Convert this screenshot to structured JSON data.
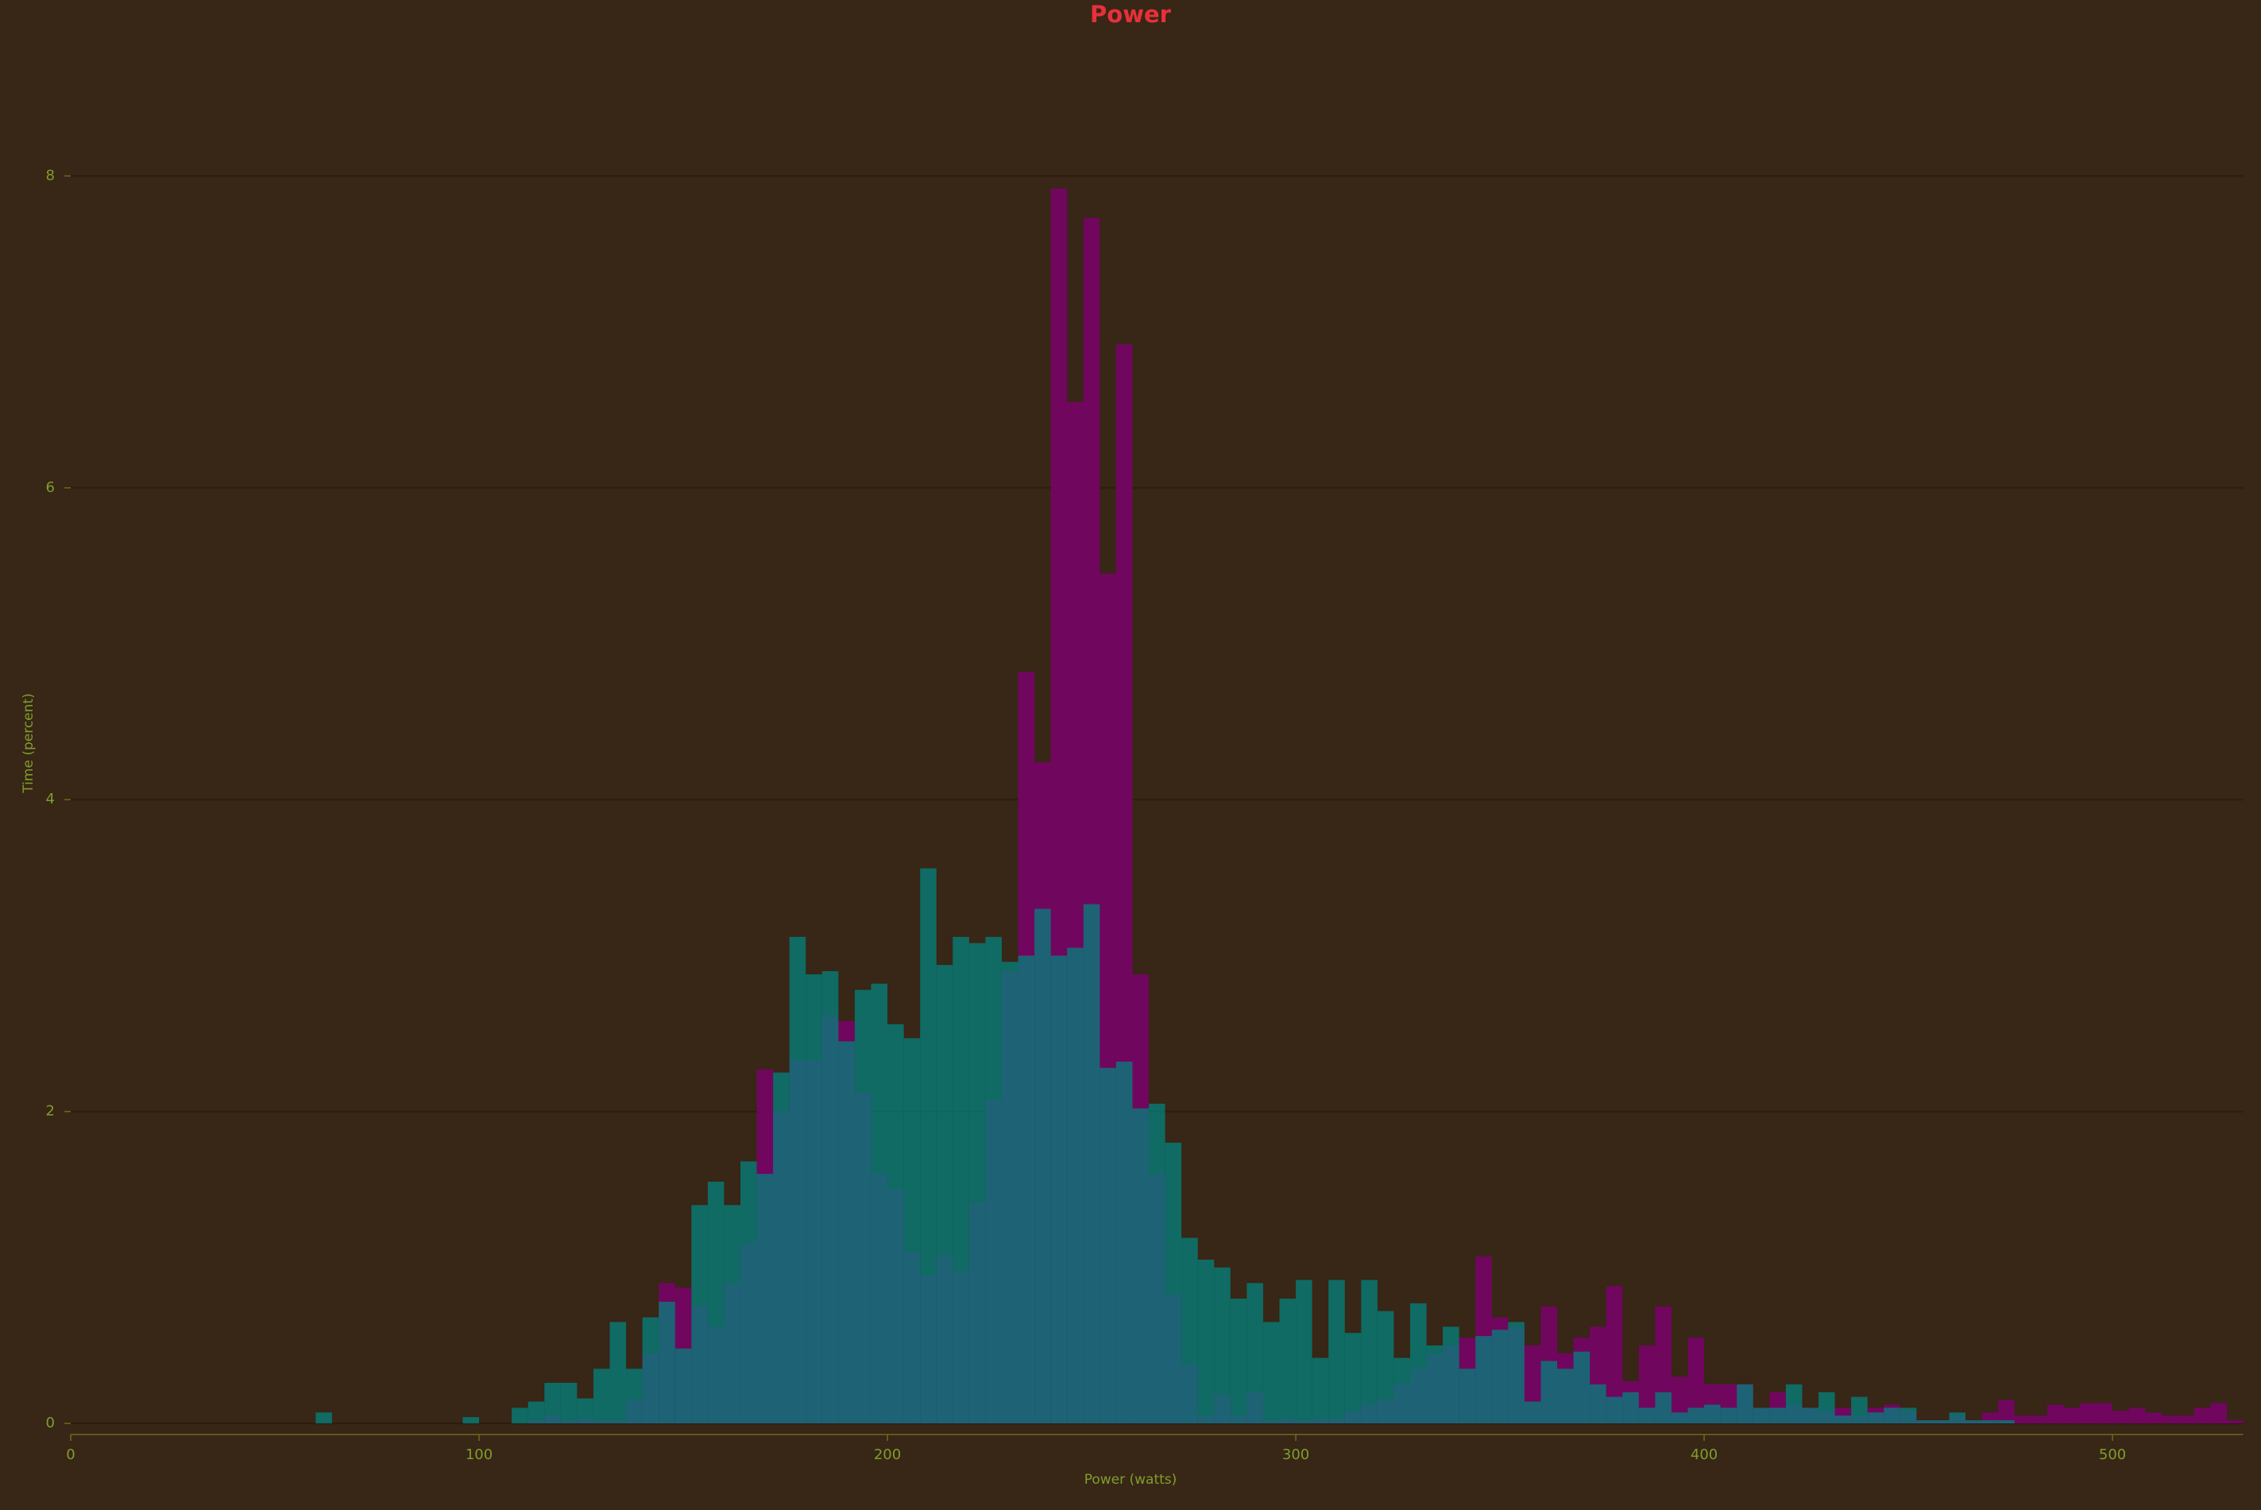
{
  "chart_data": {
    "type": "histogram",
    "title": "Power",
    "x_label": "Power (watts)",
    "y_label": "Time (percent)",
    "bins": [
      0,
      4,
      8,
      12,
      16,
      20,
      24,
      28,
      32,
      36,
      40,
      44,
      48,
      52,
      56,
      60,
      64,
      68,
      72,
      76,
      80,
      84,
      88,
      92,
      96,
      100,
      104,
      108,
      112,
      116,
      120,
      124,
      128,
      132,
      136,
      140,
      144,
      148,
      152,
      156,
      160,
      164,
      168,
      172,
      176,
      180,
      184,
      188,
      192,
      196,
      200,
      204,
      208,
      212,
      216,
      220,
      224,
      228,
      232,
      236,
      240,
      244,
      248,
      252,
      256,
      260,
      264,
      268,
      272,
      276,
      280,
      284,
      288,
      292,
      296,
      300,
      304,
      308,
      312,
      316,
      320,
      324,
      328,
      332,
      336,
      340,
      344,
      348,
      352,
      356,
      360,
      364,
      368,
      372,
      376,
      380,
      384,
      388,
      392,
      396,
      400,
      404,
      408,
      412,
      416,
      420,
      424,
      428,
      432,
      436,
      440,
      444,
      448,
      452,
      456,
      460,
      464,
      468,
      472,
      476,
      480,
      484,
      488,
      492,
      496,
      500,
      504,
      508,
      512,
      516,
      520,
      524,
      528,
      532
    ],
    "series": [
      {
        "color": "#71065f",
        "values": [
          0,
          0,
          0,
          0,
          0,
          0,
          0,
          0,
          0,
          0,
          0,
          0,
          0,
          0,
          0,
          0,
          0,
          0,
          0,
          0,
          0,
          0,
          0,
          0,
          0,
          0,
          0,
          0,
          0.02,
          0.05,
          0.02,
          0.03,
          0.02,
          0.02,
          0.15,
          0.45,
          0.9,
          0.87,
          0.75,
          0.62,
          0.9,
          1.15,
          2.27,
          2.0,
          2.33,
          2.33,
          2.62,
          2.58,
          2.12,
          1.6,
          1.5,
          1.1,
          0.95,
          1.08,
          0.98,
          1.42,
          2.08,
          2.9,
          4.82,
          4.24,
          7.92,
          6.55,
          7.73,
          5.45,
          6.92,
          2.88,
          1.6,
          0.83,
          0.38,
          0.05,
          0.18,
          0.05,
          0.2,
          0.02,
          0.03,
          0.02,
          0.03,
          0.03,
          0.08,
          0.12,
          0.15,
          0.25,
          0.35,
          0.45,
          0.5,
          0.55,
          1.07,
          0.68,
          0.62,
          0.5,
          0.75,
          0.45,
          0.55,
          0.62,
          0.88,
          0.27,
          0.5,
          0.75,
          0.3,
          0.55,
          0.25,
          0.25,
          0.25,
          0.1,
          0.2,
          0.12,
          0.1,
          0.08,
          0.1,
          0.05,
          0.1,
          0.12,
          0.08,
          0.02,
          0.02,
          0.05,
          0.02,
          0.07,
          0.15,
          0.05,
          0.05,
          0.12,
          0.1,
          0.13,
          0.13,
          0.08,
          0.1,
          0.07,
          0.05,
          0.05,
          0.1,
          0.13,
          0.02
        ]
      },
      {
        "color": "#008580",
        "values": [
          0,
          0,
          0,
          0,
          0,
          0,
          0,
          0,
          0,
          0,
          0,
          0,
          0,
          0,
          0,
          0.07,
          0,
          0,
          0,
          0,
          0,
          0,
          0,
          0,
          0.04,
          0,
          0,
          0.1,
          0.14,
          0.26,
          0.26,
          0.16,
          0.35,
          0.65,
          0.35,
          0.68,
          0.78,
          0.48,
          1.4,
          1.55,
          1.4,
          1.68,
          1.6,
          2.25,
          3.12,
          2.88,
          2.9,
          2.45,
          2.78,
          2.82,
          2.56,
          2.47,
          3.56,
          2.94,
          3.12,
          3.08,
          3.12,
          2.96,
          3.0,
          3.3,
          3.0,
          3.05,
          3.33,
          2.28,
          2.32,
          2.02,
          2.05,
          1.8,
          1.19,
          1.05,
          1.0,
          0.8,
          0.9,
          0.65,
          0.8,
          0.92,
          0.42,
          0.92,
          0.58,
          0.92,
          0.72,
          0.42,
          0.77,
          0.5,
          0.62,
          0.35,
          0.56,
          0.6,
          0.65,
          0.14,
          0.4,
          0.35,
          0.46,
          0.25,
          0.17,
          0.2,
          0.1,
          0.2,
          0.07,
          0.1,
          0.12,
          0.1,
          0.25,
          0.1,
          0.1,
          0.25,
          0.1,
          0.2,
          0.05,
          0.17,
          0.07,
          0.1,
          0.1,
          0.02,
          0.02,
          0.07,
          0.02,
          0.02,
          0.02,
          0,
          0,
          0,
          0,
          0,
          0,
          0,
          0,
          0,
          0,
          0,
          0,
          0,
          0
        ]
      }
    ],
    "xlim": [
      0,
      532
    ],
    "xticks": [
      0,
      100,
      200,
      300,
      400,
      500
    ],
    "ylim": [
      0,
      8.9
    ],
    "yticks": [
      0,
      2,
      4,
      6,
      8
    ],
    "grid": true
  }
}
